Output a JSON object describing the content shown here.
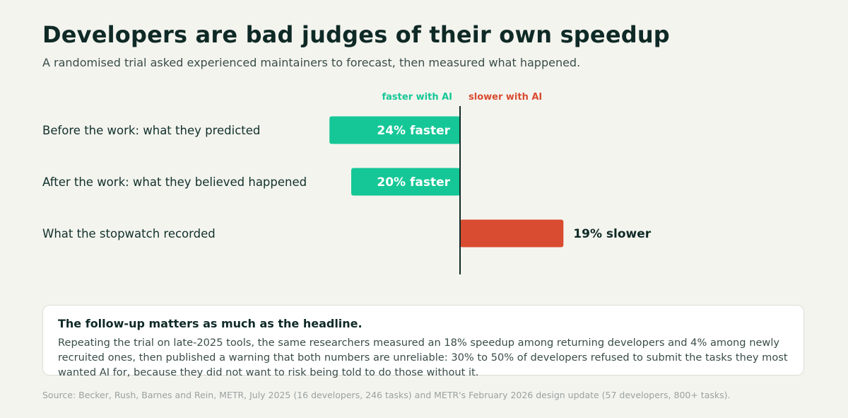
{
  "header": {
    "title": "Developers are bad judges of their own speedup",
    "subtitle": "A randomised trial asked experienced maintainers to forecast, then measured what happened."
  },
  "chart_data": {
    "type": "bar",
    "orientation": "horizontal-diverging",
    "direction_labels": {
      "negative": "faster with AI",
      "positive": "slower with AI"
    },
    "categories": [
      "Before the work: what they predicted",
      "After the work: what they believed happened",
      "What the stopwatch recorded"
    ],
    "values": [
      -24,
      -20,
      19
    ],
    "value_labels": [
      "24% faster",
      "20% faster",
      "19% slower"
    ],
    "colors": {
      "faster": "#15c796",
      "slower": "#d94c31",
      "axis": "#0f2a26"
    },
    "xlim": [
      -30,
      30
    ]
  },
  "note": {
    "title": "The follow-up matters as much as the headline.",
    "body": "Repeating the trial on late-2025 tools, the same researchers measured an 18% speedup among returning developers and 4% among newly recruited ones, then published a warning that both numbers are unreliable: 30% to 50% of developers refused to submit the tasks they most wanted AI for, because they did not want to risk being told to do those without it."
  },
  "source": "Source: Becker, Rush, Barnes and Rein, METR, July 2025 (16 developers, 246 tasks) and METR's February 2026 design update (57 developers, 800+ tasks)."
}
